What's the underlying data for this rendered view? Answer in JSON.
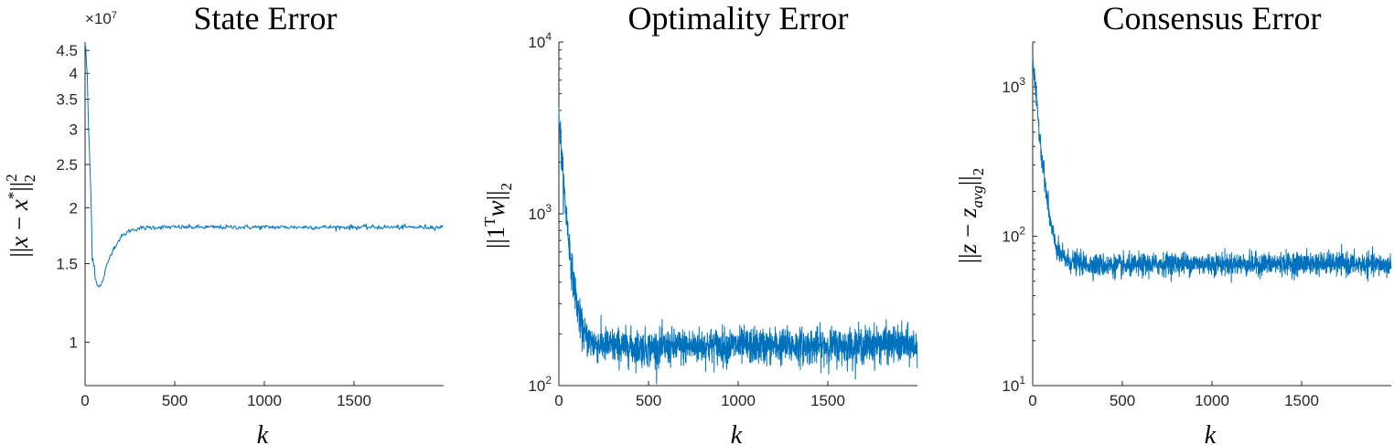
{
  "chart_data": [
    {
      "type": "line",
      "title": "State Error",
      "xlabel": "k",
      "ylabel": "||x − x*||₂²",
      "yscale": "log",
      "exponent_label": "×10^7",
      "xlim": [
        0,
        2000
      ],
      "ylim": [
        0.8,
        4.7
      ],
      "xticks": [
        "0",
        "500",
        "1000",
        "1500"
      ],
      "yticks": [
        "1",
        "1.5",
        "2",
        "2.5",
        "3",
        "3.5",
        "4",
        "4.5"
      ],
      "line_color": "#0072BD",
      "grid": false,
      "series": [
        {
          "x": [
            0,
            10,
            20,
            30,
            40,
            50,
            60,
            75,
            90,
            100,
            120,
            150,
            200,
            250,
            300,
            400,
            500,
            700,
            1000,
            1300,
            1600,
            2000
          ],
          "y": [
            4.7,
            4.1,
            3.0,
            2.3,
            1.6,
            1.5,
            1.38,
            1.33,
            1.34,
            1.38,
            1.48,
            1.6,
            1.72,
            1.78,
            1.8,
            1.81,
            1.81,
            1.81,
            1.81,
            1.81,
            1.81,
            1.81
          ]
        }
      ]
    },
    {
      "type": "line",
      "title": "Optimality Error",
      "xlabel": "k",
      "ylabel": "||1ᵀw||₂",
      "yscale": "log",
      "xlim": [
        0,
        2000
      ],
      "ylim": [
        100,
        10000
      ],
      "xticks": [
        "0",
        "500",
        "1000",
        "1500"
      ],
      "yticks": [
        {
          "base": "10",
          "exp": "2"
        },
        {
          "base": "10",
          "exp": "3"
        },
        {
          "base": "10",
          "exp": "4"
        }
      ],
      "line_color": "#0072BD",
      "grid": false,
      "series": [
        {
          "x": [
            0,
            25,
            50,
            75,
            100,
            125,
            150,
            200,
            300,
            500,
            800,
            1200,
            1600,
            1800,
            2000
          ],
          "y": [
            4000,
            1500,
            800,
            450,
            300,
            220,
            190,
            175,
            170,
            165,
            170,
            170,
            170,
            175,
            170
          ]
        }
      ]
    },
    {
      "type": "line",
      "title": "Consensus Error",
      "xlabel": "k",
      "ylabel": "||z − z_avg||₂",
      "yscale": "log",
      "xlim": [
        0,
        2000
      ],
      "ylim": [
        10,
        2000
      ],
      "xticks": [
        "0",
        "500",
        "1000",
        "1500"
      ],
      "yticks": [
        {
          "base": "10",
          "exp": "1"
        },
        {
          "base": "10",
          "exp": "2"
        },
        {
          "base": "10",
          "exp": "3"
        }
      ],
      "line_color": "#0072BD",
      "grid": false,
      "series": [
        {
          "x": [
            0,
            25,
            50,
            75,
            100,
            125,
            150,
            200,
            300,
            500,
            800,
            1200,
            1600,
            2000
          ],
          "y": [
            1600,
            700,
            360,
            200,
            120,
            90,
            75,
            68,
            65,
            63,
            66,
            65,
            66,
            64
          ]
        }
      ]
    }
  ]
}
